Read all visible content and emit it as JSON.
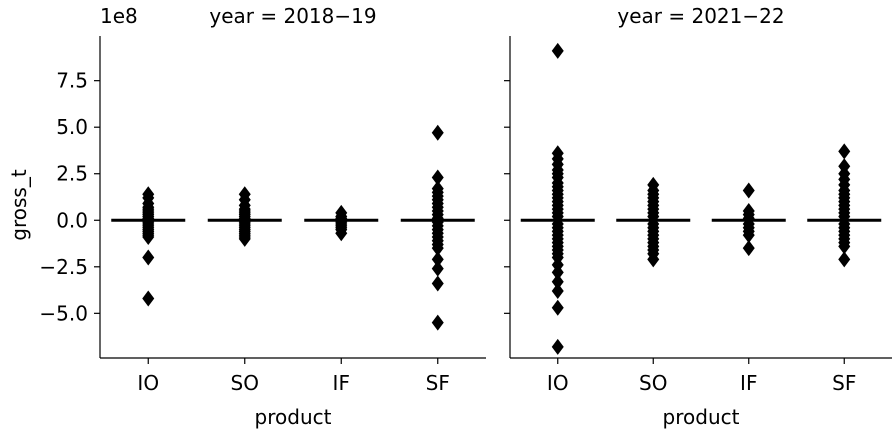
{
  "colors": {
    "marker": "#000000",
    "axis": "#000000",
    "background": "#ffffff"
  },
  "chart_data": {
    "type": "scatter",
    "multiplier_label": "1e8",
    "ylabel": "gross_t",
    "xlabel": "product",
    "yticks": [
      -5.0,
      -2.5,
      0.0,
      2.5,
      5.0,
      7.5
    ],
    "ytick_labels": [
      "−5.0",
      "−2.5",
      "0.0",
      "2.5",
      "5.0",
      "7.5"
    ],
    "ylim": [
      -7.4,
      9.9
    ],
    "categories": [
      "IO",
      "SO",
      "IF",
      "SF"
    ],
    "panels": [
      {
        "title": "year = 2018−19",
        "medians": [
          0,
          0,
          0,
          0
        ],
        "points": [
          [
            1.4,
            1.2,
            0.9,
            0.7,
            0.6,
            0.5,
            0.4,
            0.3,
            0.2,
            0.1,
            -0.1,
            -0.2,
            -0.3,
            -0.4,
            -0.5,
            -0.6,
            -0.7,
            -0.8,
            -0.9,
            -2.0,
            -4.2
          ],
          [
            1.4,
            1.1,
            0.8,
            0.6,
            0.5,
            0.4,
            0.3,
            0.2,
            0.1,
            -0.1,
            -0.2,
            -0.3,
            -0.4,
            -0.5,
            -0.6,
            -0.7,
            -0.8,
            -0.9,
            -1.0
          ],
          [
            0.4,
            0.2,
            0.1,
            -0.1,
            -0.2,
            -0.3,
            -0.4,
            -0.5,
            -0.7
          ],
          [
            4.7,
            2.3,
            1.7,
            1.5,
            1.3,
            1.1,
            0.9,
            0.7,
            0.5,
            0.3,
            0.1,
            -0.1,
            -0.3,
            -0.5,
            -0.7,
            -0.9,
            -1.1,
            -1.3,
            -1.5,
            -2.1,
            -2.6,
            -3.4,
            -5.5
          ]
        ]
      },
      {
        "title": "year = 2021−22",
        "medians": [
          0,
          0,
          0,
          0
        ],
        "points": [
          [
            9.1,
            3.6,
            3.3,
            3.0,
            2.7,
            2.5,
            2.3,
            2.0,
            1.8,
            1.6,
            1.4,
            1.2,
            1.0,
            0.8,
            0.6,
            0.4,
            0.2,
            -0.2,
            -0.4,
            -0.6,
            -0.8,
            -1.0,
            -1.2,
            -1.4,
            -1.6,
            -1.8,
            -2.0,
            -2.4,
            -2.8,
            -3.3,
            -3.8,
            -4.7,
            -6.8
          ],
          [
            1.9,
            1.6,
            1.4,
            1.2,
            1.0,
            0.8,
            0.6,
            0.4,
            0.2,
            -0.2,
            -0.4,
            -0.6,
            -0.8,
            -1.0,
            -1.2,
            -1.4,
            -1.6,
            -1.8,
            -2.1
          ],
          [
            1.6,
            0.5,
            0.3,
            0.1,
            -0.2,
            -0.4,
            -0.6,
            -0.8,
            -1.5
          ],
          [
            3.7,
            2.9,
            2.5,
            2.2,
            1.9,
            1.6,
            1.4,
            1.2,
            1.0,
            0.8,
            0.6,
            0.4,
            0.2,
            -0.2,
            -0.4,
            -0.6,
            -0.8,
            -1.0,
            -1.2,
            -1.4,
            -2.1
          ]
        ]
      }
    ]
  }
}
